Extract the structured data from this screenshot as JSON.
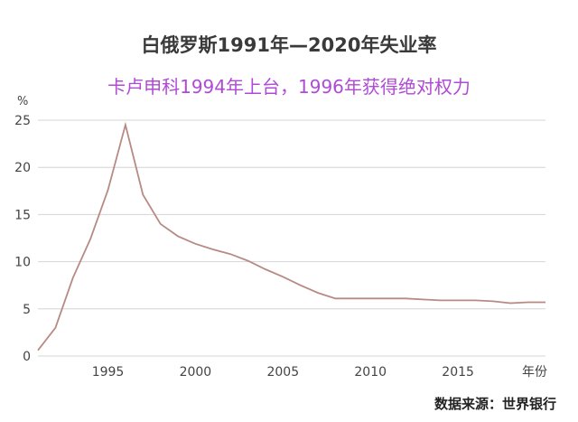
{
  "chart_data": {
    "type": "line",
    "title": "白俄罗斯1991年—2020年失业率",
    "subtitle": "卡卢申科1994年上台，1996年获得绝对权力",
    "source": "数据来源：世界银行",
    "xlabel": "年份",
    "ylabel": "%",
    "xlim": [
      1991,
      2020
    ],
    "ylim": [
      0,
      25
    ],
    "xticks": [
      1995,
      2000,
      2005,
      2010,
      2015
    ],
    "yticks": [
      0,
      5,
      10,
      15,
      20,
      25
    ],
    "grid": true,
    "line_color": "#b78a84",
    "title_color": "#3a3a3a",
    "subtitle_color": "#b04ad6",
    "series": [
      {
        "x": [
          1991,
          1992,
          1993,
          1994,
          1995,
          1996,
          1997,
          1998,
          1999,
          2000,
          2001,
          2002,
          2003,
          2004,
          2005,
          2006,
          2007,
          2008,
          2009,
          2010,
          2011,
          2012,
          2013,
          2014,
          2015,
          2016,
          2017,
          2018,
          2019,
          2020
        ],
        "values": [
          0.6,
          3.0,
          8.3,
          12.4,
          17.6,
          24.5,
          17.1,
          14.0,
          12.7,
          11.9,
          11.3,
          10.8,
          10.1,
          9.2,
          8.4,
          7.5,
          6.7,
          6.1,
          6.1,
          6.1,
          6.1,
          6.1,
          6.0,
          5.9,
          5.9,
          5.9,
          5.8,
          5.6,
          5.7,
          5.7
        ]
      }
    ]
  }
}
